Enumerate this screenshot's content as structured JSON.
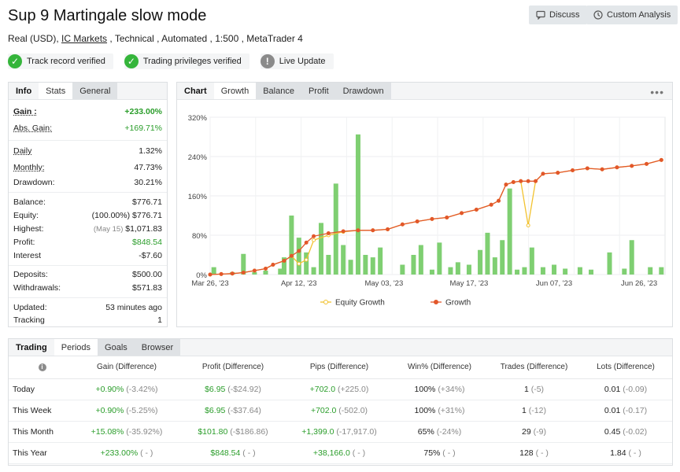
{
  "header": {
    "title": "Sup 9 Martingale slow mode",
    "subtitle_prefix": "Real (USD), ",
    "broker": "IC Markets",
    "subtitle_suffix": " , Technical , Automated , 1:500 , MetaTrader 4",
    "discuss_label": "Discuss",
    "custom_analysis_label": "Custom Analysis"
  },
  "badges": [
    {
      "label": "Track record verified",
      "icon": "check-icon"
    },
    {
      "label": "Trading privileges verified",
      "icon": "check-icon"
    },
    {
      "label": "Live Update",
      "icon": "exclamation-icon"
    }
  ],
  "left_tabs": [
    "Info",
    "Stats",
    "General"
  ],
  "stats": {
    "gain_label": "Gain :",
    "gain": "+233.00%",
    "abs_gain_label": "Abs. Gain:",
    "abs_gain": "+169.71%",
    "daily_label": "Daily",
    "daily": "1.32%",
    "monthly_label": "Monthly:",
    "monthly": "47.73%",
    "drawdown_label": "Drawdown:",
    "drawdown": "30.21%",
    "balance_label": "Balance:",
    "balance": "$776.71",
    "equity_label": "Equity:",
    "equity_pct": "(100.00%)",
    "equity": "$776.71",
    "highest_label": "Highest:",
    "highest_date": "(May 15)",
    "highest": "$1,071.83",
    "profit_label": "Profit:",
    "profit": "$848.54",
    "interest_label": "Interest",
    "interest": "-$7.60",
    "deposits_label": "Deposits:",
    "deposits": "$500.00",
    "withdrawals_label": "Withdrawals:",
    "withdrawals": "$571.83",
    "updated_label": "Updated:",
    "updated": "53 minutes ago",
    "tracking_label": "Tracking",
    "tracking": "1"
  },
  "chart_tabs": [
    "Chart",
    "Growth",
    "Balance",
    "Profit",
    "Drawdown"
  ],
  "chart_more": "•••",
  "chart_data": {
    "type": "line",
    "y_ticks": [
      "320%",
      "240%",
      "160%",
      "80%",
      "0%"
    ],
    "ylim": [
      0,
      320
    ],
    "x_ticks": [
      "Mar 26, '23",
      "Apr 12, '23",
      "May 03, '23",
      "May 17, '23",
      "Jun 07, '23",
      "Jun 26, '23"
    ],
    "legend": "bottom-center",
    "grid": true,
    "colors": {
      "equity": "#f2c230",
      "growth": "#e2572b",
      "bars": "#7fcf72"
    },
    "series": [
      {
        "name": "Equity Growth",
        "points": [
          [
            0,
            0
          ],
          [
            3,
            1
          ],
          [
            6,
            2
          ],
          [
            9,
            4
          ],
          [
            12,
            8
          ],
          [
            15,
            12
          ],
          [
            17,
            20
          ],
          [
            20,
            28
          ],
          [
            22,
            38
          ],
          [
            24,
            22
          ],
          [
            26,
            30
          ],
          [
            28,
            70
          ],
          [
            32,
            80
          ],
          [
            36,
            87
          ],
          [
            40,
            90
          ],
          [
            44,
            90
          ],
          [
            48,
            92
          ],
          [
            52,
            102
          ],
          [
            56,
            108
          ],
          [
            60,
            113
          ],
          [
            64,
            116
          ],
          [
            68,
            125
          ],
          [
            72,
            132
          ],
          [
            76,
            142
          ],
          [
            78,
            150
          ],
          [
            80,
            183
          ],
          [
            82,
            188
          ],
          [
            84,
            190
          ],
          [
            86,
            100
          ],
          [
            88,
            190
          ],
          [
            90,
            205
          ],
          [
            94,
            207
          ],
          [
            98,
            212
          ],
          [
            102,
            216
          ],
          [
            106,
            214
          ],
          [
            110,
            218
          ],
          [
            114,
            221
          ],
          [
            118,
            225
          ],
          [
            122,
            233
          ]
        ]
      },
      {
        "name": "Growth",
        "points": [
          [
            0,
            0
          ],
          [
            3,
            1
          ],
          [
            6,
            2
          ],
          [
            9,
            4
          ],
          [
            12,
            8
          ],
          [
            15,
            12
          ],
          [
            17,
            20
          ],
          [
            20,
            28
          ],
          [
            22,
            38
          ],
          [
            24,
            48
          ],
          [
            26,
            65
          ],
          [
            28,
            78
          ],
          [
            32,
            84
          ],
          [
            36,
            88
          ],
          [
            40,
            90
          ],
          [
            44,
            90
          ],
          [
            48,
            92
          ],
          [
            52,
            102
          ],
          [
            56,
            108
          ],
          [
            60,
            113
          ],
          [
            64,
            116
          ],
          [
            68,
            125
          ],
          [
            72,
            132
          ],
          [
            76,
            142
          ],
          [
            78,
            150
          ],
          [
            80,
            183
          ],
          [
            82,
            188
          ],
          [
            84,
            190
          ],
          [
            86,
            190
          ],
          [
            88,
            190
          ],
          [
            90,
            205
          ],
          [
            94,
            207
          ],
          [
            98,
            212
          ],
          [
            102,
            216
          ],
          [
            106,
            214
          ],
          [
            110,
            218
          ],
          [
            114,
            221
          ],
          [
            118,
            225
          ],
          [
            122,
            233
          ]
        ]
      }
    ],
    "bars": [
      [
        1,
        15
      ],
      [
        6,
        5
      ],
      [
        9,
        42
      ],
      [
        12,
        5
      ],
      [
        15,
        8
      ],
      [
        19,
        12
      ],
      [
        20,
        35
      ],
      [
        22,
        120
      ],
      [
        24,
        75
      ],
      [
        26,
        45
      ],
      [
        28,
        15
      ],
      [
        30,
        105
      ],
      [
        32,
        40
      ],
      [
        34,
        185
      ],
      [
        36,
        60
      ],
      [
        38,
        30
      ],
      [
        40,
        285
      ],
      [
        42,
        40
      ],
      [
        44,
        35
      ],
      [
        46,
        55
      ],
      [
        52,
        20
      ],
      [
        55,
        40
      ],
      [
        57,
        60
      ],
      [
        60,
        10
      ],
      [
        62,
        65
      ],
      [
        65,
        15
      ],
      [
        67,
        25
      ],
      [
        70,
        20
      ],
      [
        73,
        50
      ],
      [
        75,
        85
      ],
      [
        77,
        35
      ],
      [
        79,
        70
      ],
      [
        81,
        175
      ],
      [
        83,
        10
      ],
      [
        85,
        15
      ],
      [
        87,
        55
      ],
      [
        90,
        15
      ],
      [
        93,
        20
      ],
      [
        96,
        12
      ],
      [
        100,
        15
      ],
      [
        103,
        10
      ],
      [
        108,
        45
      ],
      [
        112,
        12
      ],
      [
        114,
        70
      ],
      [
        119,
        15
      ],
      [
        122,
        15
      ]
    ]
  },
  "bottom_tabs": [
    "Trading",
    "Periods",
    "Goals",
    "Browser"
  ],
  "table": {
    "headers": [
      "Gain (Difference)",
      "Profit (Difference)",
      "Pips (Difference)",
      "Win% (Difference)",
      "Trades (Difference)",
      "Lots (Difference)"
    ],
    "rows": [
      {
        "label": "Today",
        "gain": "+0.90%",
        "gain_diff": "(-3.42%)",
        "profit": "$6.95",
        "profit_diff": "(-$24.92)",
        "pips": "+702.0",
        "pips_diff": "(+225.0)",
        "win": "100%",
        "win_diff": "(+34%)",
        "trades": "1",
        "trades_diff": "(-5)",
        "lots": "0.01",
        "lots_diff": "(-0.09)"
      },
      {
        "label": "This Week",
        "gain": "+0.90%",
        "gain_diff": "(-5.25%)",
        "profit": "$6.95",
        "profit_diff": "(-$37.64)",
        "pips": "+702.0",
        "pips_diff": "(-502.0)",
        "win": "100%",
        "win_diff": "(+31%)",
        "trades": "1",
        "trades_diff": "(-12)",
        "lots": "0.01",
        "lots_diff": "(-0.17)"
      },
      {
        "label": "This Month",
        "gain": "+15.08%",
        "gain_diff": "(-35.92%)",
        "profit": "$101.80",
        "profit_diff": "(-$186.86)",
        "pips": "+1,399.0",
        "pips_diff": "(-17,917.0)",
        "win": "65%",
        "win_diff": "(-24%)",
        "trades": "29",
        "trades_diff": "(-9)",
        "lots": "0.45",
        "lots_diff": "(-0.02)"
      },
      {
        "label": "This Year",
        "gain": "+233.00%",
        "gain_diff": "( - )",
        "profit": "$848.54",
        "profit_diff": "( - )",
        "pips": "+38,166.0",
        "pips_diff": "( - )",
        "win": "75%",
        "win_diff": "( - )",
        "trades": "128",
        "trades_diff": "( - )",
        "lots": "1.84",
        "lots_diff": "( - )"
      }
    ]
  }
}
